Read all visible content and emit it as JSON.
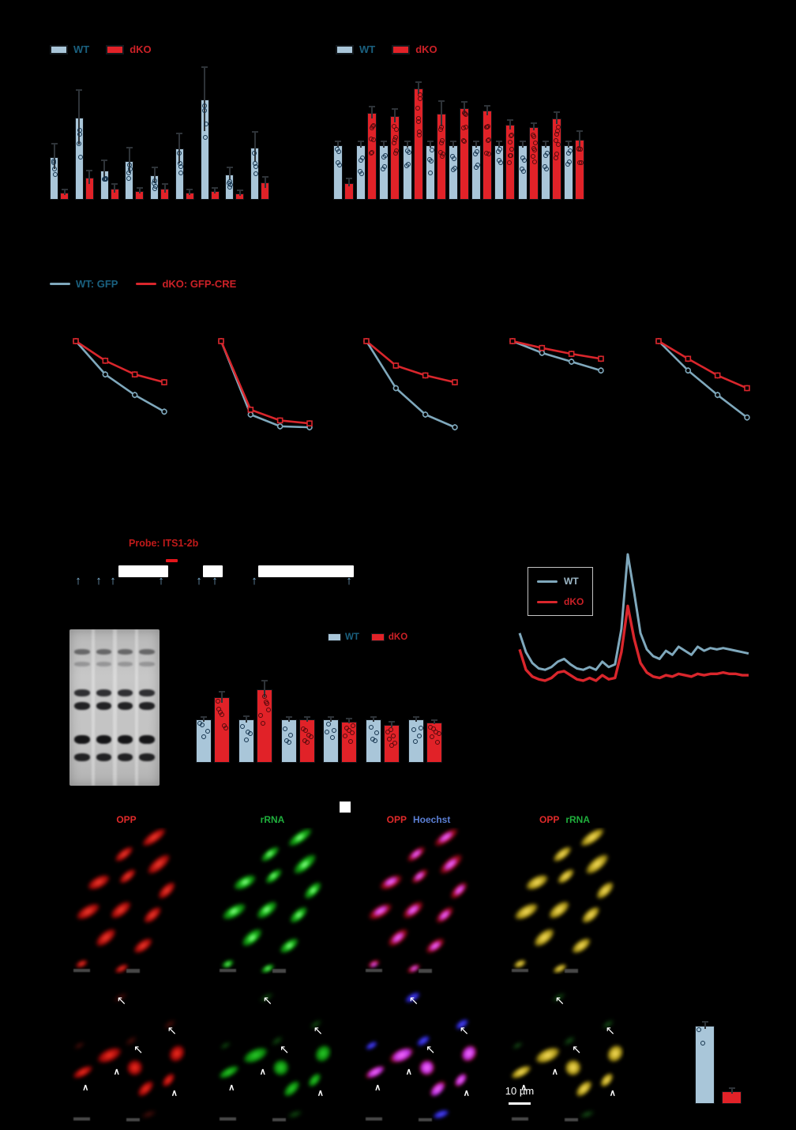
{
  "figure": {
    "type": "multi-panel scientific figure",
    "background": "#000000"
  },
  "colors": {
    "background": "#000000",
    "wt_fill": "#a9c6d9",
    "dko_fill": "#e12228",
    "wt_text": "#1a607f",
    "dko_text": "#cb2127",
    "wt_line": "#7fa8bc",
    "dko_line": "#d9262c",
    "opp": "#e02a2a",
    "green": "#1fae3c",
    "hoechst": "#5b7fd4",
    "probe": "#c11a1a",
    "site_arrow": "#7fb3d4",
    "scale_text": "#ffffff"
  },
  "legends": {
    "wt": "WT",
    "dko": "dKO",
    "wt_gfp": "WT: GFP",
    "dko_gfp_cre": "dKO: GFP-CRE"
  },
  "diagram": {
    "probe": "Probe: ITS1-2b"
  },
  "microscopy": {
    "opp": "OPP",
    "green": "rRNA",
    "hoechst": "Hoechst",
    "scale": "10 µm"
  },
  "chart_data": [
    {
      "id": "panel_a",
      "type": "bar",
      "ylim": [
        0,
        1.1
      ],
      "legend_position": "top-left",
      "grid": false,
      "series": [
        {
          "name": "WT",
          "values": [
            0.35,
            0.67,
            0.24,
            0.32,
            0.2,
            0.42,
            0.82,
            0.21,
            0.43
          ],
          "err": [
            0.1,
            0.22,
            0.08,
            0.1,
            0.06,
            0.12,
            0.26,
            0.05,
            0.12
          ]
        },
        {
          "name": "dKO",
          "values": [
            0.06,
            0.18,
            0.09,
            0.07,
            0.09,
            0.06,
            0.07,
            0.05,
            0.14
          ],
          "err": [
            0.02,
            0.05,
            0.03,
            0.02,
            0.03,
            0.02,
            0.02,
            0.02,
            0.04
          ]
        }
      ]
    },
    {
      "id": "panel_b",
      "type": "bar",
      "ylim": [
        0,
        2.6
      ],
      "legend_position": "top-left",
      "grid": false,
      "series": [
        {
          "name": "WT",
          "values": [
            1,
            1,
            1,
            1,
            1,
            1,
            1,
            1,
            1,
            1,
            1
          ],
          "err": [
            0.05,
            0.05,
            0.05,
            0.05,
            0.05,
            0.05,
            0.05,
            0.05,
            0.05,
            0.05,
            0.05
          ]
        },
        {
          "name": "dKO",
          "values": [
            0.31,
            1.59,
            1.53,
            2.04,
            1.57,
            1.67,
            1.63,
            1.37,
            1.33,
            1.49,
            1.1
          ],
          "err": [
            0.06,
            0.1,
            0.12,
            0.1,
            0.22,
            0.1,
            0.08,
            0.08,
            0.06,
            0.1,
            0.14
          ]
        }
      ]
    },
    {
      "id": "panel_c",
      "type": "line",
      "x": [
        0,
        1,
        2,
        3
      ],
      "ylim": [
        0,
        1
      ],
      "plots": [
        {
          "WT": [
            1,
            0.66,
            0.45,
            0.28
          ],
          "dKO": [
            1,
            0.8,
            0.66,
            0.58
          ]
        },
        {
          "WT": [
            1,
            0.25,
            0.13,
            0.12
          ],
          "dKO": [
            1,
            0.3,
            0.19,
            0.16
          ]
        },
        {
          "WT": [
            1,
            0.52,
            0.25,
            0.12
          ],
          "dKO": [
            1,
            0.75,
            0.65,
            0.58
          ]
        },
        {
          "WT": [
            1,
            0.88,
            0.79,
            0.7
          ],
          "dKO": [
            1,
            0.93,
            0.87,
            0.82
          ]
        },
        {
          "WT": [
            1,
            0.7,
            0.45,
            0.22
          ],
          "dKO": [
            1,
            0.82,
            0.65,
            0.52
          ]
        }
      ]
    },
    {
      "id": "panel_f",
      "type": "bar",
      "ylim": [
        0,
        2.2
      ],
      "legend_position": "top-right",
      "grid": false,
      "series": [
        {
          "name": "WT",
          "values": [
            1,
            1,
            1,
            1,
            1,
            1
          ],
          "err": [
            0.05,
            0.06,
            0.04,
            0.04,
            0.04,
            0.04
          ]
        },
        {
          "name": "dKO",
          "values": [
            1.52,
            1.7,
            1.0,
            0.96,
            0.88,
            0.94
          ],
          "err": [
            0.12,
            0.18,
            0.05,
            0.04,
            0.05,
            0.04
          ]
        }
      ]
    },
    {
      "id": "panel_g",
      "type": "line",
      "ylim": [
        0,
        1
      ],
      "legend_position": "top-left-box",
      "WT": [
        0.42,
        0.28,
        0.2,
        0.16,
        0.15,
        0.17,
        0.21,
        0.23,
        0.19,
        0.16,
        0.15,
        0.17,
        0.15,
        0.21,
        0.17,
        0.19,
        0.45,
        1.0,
        0.72,
        0.42,
        0.3,
        0.25,
        0.23,
        0.29,
        0.26,
        0.32,
        0.29,
        0.26,
        0.32,
        0.29,
        0.31,
        0.3,
        0.31,
        0.3,
        0.29,
        0.28,
        0.27
      ],
      "dKO": [
        0.3,
        0.15,
        0.1,
        0.08,
        0.07,
        0.09,
        0.13,
        0.14,
        0.11,
        0.08,
        0.07,
        0.09,
        0.07,
        0.11,
        0.08,
        0.09,
        0.28,
        0.62,
        0.38,
        0.2,
        0.13,
        0.1,
        0.09,
        0.11,
        0.1,
        0.12,
        0.11,
        0.1,
        0.12,
        0.11,
        0.12,
        0.12,
        0.13,
        0.12,
        0.12,
        0.11,
        0.11
      ]
    },
    {
      "id": "panel_j",
      "type": "bar",
      "ylim": [
        0,
        1.15
      ],
      "grid": false,
      "series": [
        {
          "name": "WT",
          "values": [
            1.0
          ],
          "err": [
            0.04
          ]
        },
        {
          "name": "dKO",
          "values": [
            0.16
          ],
          "err": [
            0.03
          ]
        }
      ]
    }
  ]
}
